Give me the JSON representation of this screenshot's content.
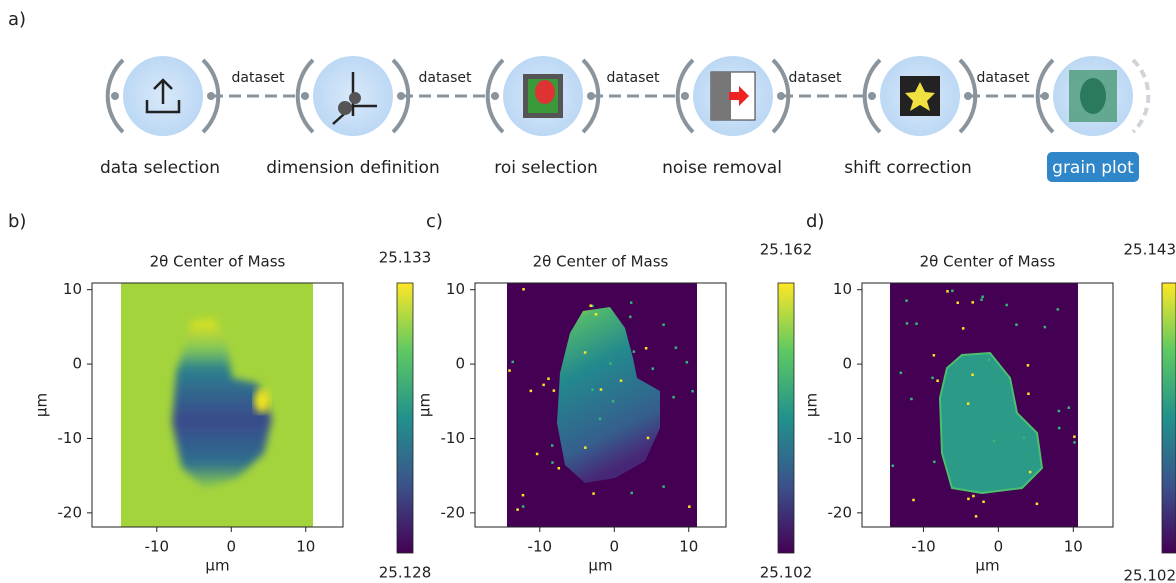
{
  "panel_labels": [
    "a)",
    "b)",
    "c)",
    "d)"
  ],
  "workflow": {
    "nodes": [
      {
        "label": "data selection"
      },
      {
        "label": "dimension definition"
      },
      {
        "label": "roi selection"
      },
      {
        "label": "noise removal"
      },
      {
        "label": "shift correction"
      },
      {
        "label": "grain plot"
      }
    ],
    "edges": [
      {
        "label": "dataset"
      },
      {
        "label": "dataset"
      },
      {
        "label": "dataset"
      },
      {
        "label": "dataset"
      },
      {
        "label": "dataset"
      }
    ]
  },
  "plots": [
    {
      "title": "2θ Center of Mass",
      "xlabel": "µm",
      "ylabel": "µm",
      "xlim": [
        -18.7,
        15
      ],
      "ylim": [
        -21.9,
        10.9
      ],
      "xticks": [
        -10,
        0,
        10
      ],
      "yticks": [
        10,
        0,
        -10,
        -20
      ],
      "colorbar": {
        "max": 25.133,
        "min": 25.128
      }
    },
    {
      "title": "2θ Center of Mass",
      "xlabel": "µm",
      "ylabel": "µm",
      "xlim": [
        -18.7,
        15
      ],
      "ylim": [
        -21.9,
        10.9
      ],
      "xticks": [
        -10,
        0,
        10
      ],
      "yticks": [
        10,
        0,
        -10,
        -20
      ],
      "colorbar": {
        "max": 25.162,
        "min": 25.102
      }
    },
    {
      "title": "2θ Center of Mass",
      "xlabel": "µm",
      "ylabel": "µm",
      "xlim": [
        -18.2,
        15.3
      ],
      "ylim": [
        -21.9,
        10.9
      ],
      "xticks": [
        -10,
        0,
        10
      ],
      "yticks": [
        10,
        0,
        -10,
        -20
      ],
      "colorbar": {
        "max": 25.143,
        "min": 25.102
      }
    }
  ]
}
